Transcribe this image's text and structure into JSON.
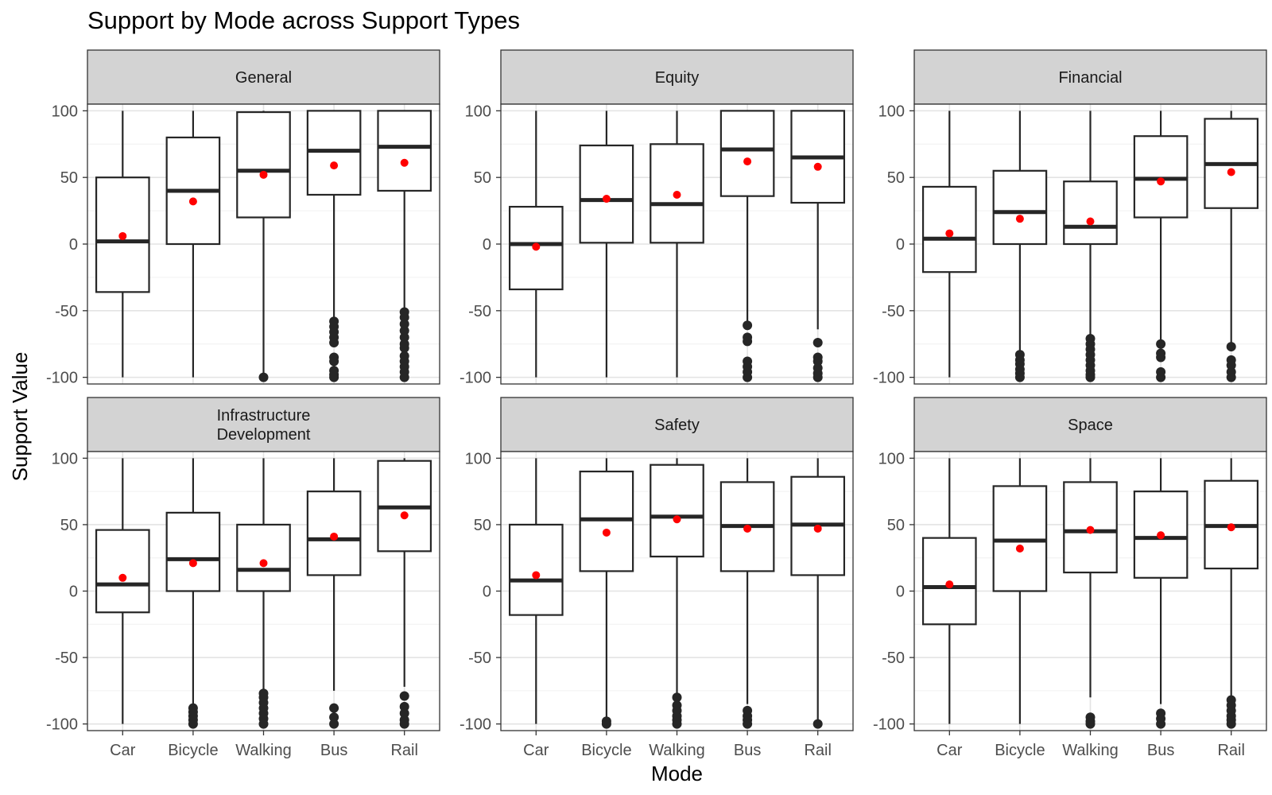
{
  "chart_data": {
    "type": "box",
    "title": "Support by Mode across Support Types",
    "xlabel": "Mode",
    "ylabel": "Support Value",
    "ylim": [
      -105,
      105
    ],
    "yticks": [
      -100,
      -50,
      0,
      50,
      100
    ],
    "categories": [
      "Car",
      "Bicycle",
      "Walking",
      "Bus",
      "Rail"
    ],
    "grid": true,
    "facet_layout": "2 rows x 3 columns, shared axes",
    "mean_marker_color": "#ff0000",
    "box_color": "#262626",
    "strip_fill_color": "#d3d3d3",
    "facets": [
      {
        "label": [
          "General"
        ],
        "boxes": [
          {
            "category": "Car",
            "whisker_low": -100,
            "q1": -36,
            "median": 2,
            "q3": 50,
            "whisker_high": 100,
            "mean": 6,
            "outliers": []
          },
          {
            "category": "Bicycle",
            "whisker_low": -100,
            "q1": 0,
            "median": 40,
            "q3": 80,
            "whisker_high": 100,
            "mean": 32,
            "outliers": []
          },
          {
            "category": "Walking",
            "whisker_low": -98,
            "q1": 20,
            "median": 55,
            "q3": 99,
            "whisker_high": 100,
            "mean": 52,
            "outliers": [
              -100
            ]
          },
          {
            "category": "Bus",
            "whisker_low": -55,
            "q1": 37,
            "median": 70,
            "q3": 100,
            "whisker_high": 100,
            "mean": 59,
            "outliers": [
              -58,
              -62,
              -66,
              -70,
              -74,
              -85,
              -88,
              -95,
              -98,
              -100
            ]
          },
          {
            "category": "Rail",
            "whisker_low": -48,
            "q1": 40,
            "median": 73,
            "q3": 100,
            "whisker_high": 100,
            "mean": 61,
            "outliers": [
              -51,
              -55,
              -60,
              -65,
              -70,
              -75,
              -78,
              -84,
              -88,
              -92,
              -96,
              -100
            ]
          }
        ]
      },
      {
        "label": [
          "Equity"
        ],
        "boxes": [
          {
            "category": "Car",
            "whisker_low": -100,
            "q1": -34,
            "median": 0,
            "q3": 28,
            "whisker_high": 100,
            "mean": -2,
            "outliers": []
          },
          {
            "category": "Bicycle",
            "whisker_low": -100,
            "q1": 1,
            "median": 33,
            "q3": 74,
            "whisker_high": 100,
            "mean": 34,
            "outliers": []
          },
          {
            "category": "Walking",
            "whisker_low": -100,
            "q1": 1,
            "median": 30,
            "q3": 75,
            "whisker_high": 100,
            "mean": 37,
            "outliers": []
          },
          {
            "category": "Bus",
            "whisker_low": -58,
            "q1": 36,
            "median": 71,
            "q3": 100,
            "whisker_high": 100,
            "mean": 62,
            "outliers": [
              -61,
              -70,
              -73,
              -88,
              -92,
              -96,
              -100
            ]
          },
          {
            "category": "Rail",
            "whisker_low": -64,
            "q1": 31,
            "median": 65,
            "q3": 100,
            "whisker_high": 100,
            "mean": 58,
            "outliers": [
              -74,
              -85,
              -88,
              -93,
              -97,
              -100
            ]
          }
        ]
      },
      {
        "label": [
          "Financial"
        ],
        "boxes": [
          {
            "category": "Car",
            "whisker_low": -100,
            "q1": -21,
            "median": 4,
            "q3": 43,
            "whisker_high": 100,
            "mean": 8,
            "outliers": []
          },
          {
            "category": "Bicycle",
            "whisker_low": -80,
            "q1": 0,
            "median": 24,
            "q3": 55,
            "whisker_high": 100,
            "mean": 19,
            "outliers": [
              -83,
              -87,
              -90,
              -94,
              -97,
              -100
            ]
          },
          {
            "category": "Walking",
            "whisker_low": -68,
            "q1": 0,
            "median": 13,
            "q3": 47,
            "whisker_high": 100,
            "mean": 17,
            "outliers": [
              -71,
              -75,
              -79,
              -83,
              -87,
              -91,
              -95,
              -98,
              -100
            ]
          },
          {
            "category": "Bus",
            "whisker_low": -72,
            "q1": 20,
            "median": 49,
            "q3": 81,
            "whisker_high": 100,
            "mean": 47,
            "outliers": [
              -75,
              -82,
              -85,
              -96,
              -100
            ]
          },
          {
            "category": "Rail",
            "whisker_low": -75,
            "q1": 27,
            "median": 60,
            "q3": 94,
            "whisker_high": 100,
            "mean": 54,
            "outliers": [
              -77,
              -87,
              -91,
              -96,
              -100
            ]
          }
        ]
      },
      {
        "label": [
          "Infrastructure",
          "Development"
        ],
        "boxes": [
          {
            "category": "Car",
            "whisker_low": -100,
            "q1": -16,
            "median": 5,
            "q3": 46,
            "whisker_high": 100,
            "mean": 10,
            "outliers": []
          },
          {
            "category": "Bicycle",
            "whisker_low": -86,
            "q1": 0,
            "median": 24,
            "q3": 59,
            "whisker_high": 100,
            "mean": 21,
            "outliers": [
              -88,
              -91,
              -94,
              -97,
              -100
            ]
          },
          {
            "category": "Walking",
            "whisker_low": -75,
            "q1": 0,
            "median": 16,
            "q3": 50,
            "whisker_high": 100,
            "mean": 21,
            "outliers": [
              -77,
              -80,
              -84,
              -88,
              -92,
              -96,
              -100
            ]
          },
          {
            "category": "Bus",
            "whisker_low": -75,
            "q1": 12,
            "median": 39,
            "q3": 75,
            "whisker_high": 100,
            "mean": 41,
            "outliers": [
              -88,
              -95,
              -100
            ]
          },
          {
            "category": "Rail",
            "whisker_low": -72,
            "q1": 30,
            "median": 63,
            "q3": 98,
            "whisker_high": 100,
            "mean": 57,
            "outliers": [
              -79,
              -87,
              -92,
              -97,
              -100
            ]
          }
        ]
      },
      {
        "label": [
          "Safety"
        ],
        "boxes": [
          {
            "category": "Car",
            "whisker_low": -100,
            "q1": -18,
            "median": 8,
            "q3": 50,
            "whisker_high": 100,
            "mean": 12,
            "outliers": []
          },
          {
            "category": "Bicycle",
            "whisker_low": -97,
            "q1": 15,
            "median": 54,
            "q3": 90,
            "whisker_high": 100,
            "mean": 44,
            "outliers": [
              -98,
              -100
            ]
          },
          {
            "category": "Walking",
            "whisker_low": -78,
            "q1": 26,
            "median": 56,
            "q3": 95,
            "whisker_high": 100,
            "mean": 54,
            "outliers": [
              -80,
              -86,
              -90,
              -94,
              -97,
              -100
            ]
          },
          {
            "category": "Bus",
            "whisker_low": -85,
            "q1": 15,
            "median": 49,
            "q3": 82,
            "whisker_high": 100,
            "mean": 47,
            "outliers": [
              -90,
              -94,
              -97,
              -100
            ]
          },
          {
            "category": "Rail",
            "whisker_low": -98,
            "q1": 12,
            "median": 50,
            "q3": 86,
            "whisker_high": 100,
            "mean": 47,
            "outliers": [
              -100
            ]
          }
        ]
      },
      {
        "label": [
          "Space"
        ],
        "boxes": [
          {
            "category": "Car",
            "whisker_low": -100,
            "q1": -25,
            "median": 3,
            "q3": 40,
            "whisker_high": 100,
            "mean": 5,
            "outliers": []
          },
          {
            "category": "Bicycle",
            "whisker_low": -100,
            "q1": 0,
            "median": 38,
            "q3": 79,
            "whisker_high": 100,
            "mean": 32,
            "outliers": []
          },
          {
            "category": "Walking",
            "whisker_low": -80,
            "q1": 14,
            "median": 45,
            "q3": 82,
            "whisker_high": 100,
            "mean": 46,
            "outliers": [
              -95,
              -98,
              -100
            ]
          },
          {
            "category": "Bus",
            "whisker_low": -85,
            "q1": 10,
            "median": 40,
            "q3": 75,
            "whisker_high": 100,
            "mean": 42,
            "outliers": [
              -92,
              -96,
              -100
            ]
          },
          {
            "category": "Rail",
            "whisker_low": -80,
            "q1": 17,
            "median": 49,
            "q3": 83,
            "whisker_high": 100,
            "mean": 48,
            "outliers": [
              -82,
              -86,
              -90,
              -94,
              -97,
              -100
            ]
          }
        ]
      }
    ]
  }
}
